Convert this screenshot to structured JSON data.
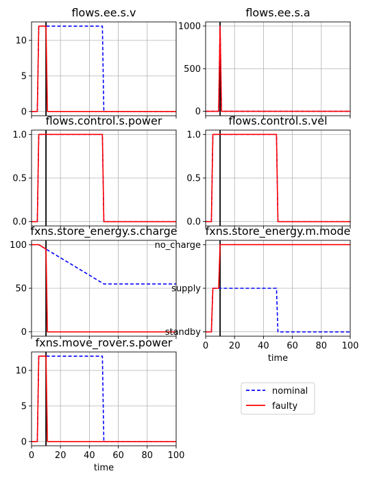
{
  "legend": {
    "entries": [
      {
        "label": "nominal",
        "color": "#0000ff",
        "dash": true
      },
      {
        "label": "faulty",
        "color": "#ff0000",
        "dash": false
      }
    ],
    "placement": "empty bottom-right cell"
  },
  "chart_data": [
    {
      "type": "line",
      "title": "flows.ee.s.v",
      "xlabel": "",
      "ylabel": "",
      "xlim": [
        0,
        100
      ],
      "ylim": [
        -0.6,
        12.6
      ],
      "yticks": [
        0,
        5,
        10
      ],
      "ytick_labels": [
        "0",
        "5",
        "10"
      ],
      "show_xtick_labels": false,
      "grid": true,
      "vline": 10,
      "series": [
        {
          "name": "nominal",
          "x": [
            0,
            4,
            5,
            49,
            50,
            100
          ],
          "y": [
            0,
            0,
            12,
            12,
            0,
            0
          ]
        },
        {
          "name": "faulty",
          "x": [
            0,
            4,
            5,
            10,
            11,
            100
          ],
          "y": [
            0,
            0,
            12,
            12,
            0,
            0
          ]
        }
      ]
    },
    {
      "type": "line",
      "title": "flows.ee.s.a",
      "xlabel": "",
      "ylabel": "",
      "xlim": [
        0,
        100
      ],
      "ylim": [
        -52,
        1048
      ],
      "yticks": [
        0,
        500,
        1000
      ],
      "ytick_labels": [
        "0",
        "500",
        "1000"
      ],
      "show_xtick_labels": false,
      "grid": true,
      "vline": 10,
      "series": [
        {
          "name": "nominal",
          "x": [
            0,
            9,
            10,
            11,
            100
          ],
          "y": [
            0,
            0,
            1000,
            0,
            0
          ]
        },
        {
          "name": "faulty",
          "x": [
            0,
            9,
            10,
            11,
            100
          ],
          "y": [
            0,
            0,
            1000,
            0,
            0
          ]
        }
      ]
    },
    {
      "type": "line",
      "title": "flows.control.s.power",
      "xlabel": "",
      "ylabel": "",
      "xlim": [
        0,
        100
      ],
      "ylim": [
        -0.05,
        1.05
      ],
      "yticks": [
        0,
        0.5,
        1
      ],
      "ytick_labels": [
        "0.0",
        "0.5",
        "1.0"
      ],
      "show_xtick_labels": false,
      "grid": true,
      "vline": 10,
      "series": [
        {
          "name": "nominal",
          "x": [
            0,
            4,
            5,
            49,
            50,
            100
          ],
          "y": [
            0,
            0,
            1,
            1,
            0,
            0
          ]
        },
        {
          "name": "faulty",
          "x": [
            0,
            4,
            5,
            49,
            50,
            100
          ],
          "y": [
            0,
            0,
            1,
            1,
            0,
            0
          ]
        }
      ]
    },
    {
      "type": "line",
      "title": "flows.control.s.vel",
      "xlabel": "",
      "ylabel": "",
      "xlim": [
        0,
        100
      ],
      "ylim": [
        -0.05,
        1.05
      ],
      "yticks": [
        0,
        0.5,
        1
      ],
      "ytick_labels": [
        "0.0",
        "0.5",
        "1.0"
      ],
      "show_xtick_labels": false,
      "grid": true,
      "vline": 10,
      "series": [
        {
          "name": "nominal",
          "x": [
            0,
            4,
            5,
            49,
            50,
            100
          ],
          "y": [
            0,
            0,
            1,
            1,
            0,
            0
          ]
        },
        {
          "name": "faulty",
          "x": [
            0,
            4,
            5,
            49,
            50,
            100
          ],
          "y": [
            0,
            0,
            1,
            1,
            0,
            0
          ]
        }
      ]
    },
    {
      "type": "line",
      "title": "fxns.store_energy.s.charge",
      "xlabel": "",
      "ylabel": "",
      "xlim": [
        0,
        100
      ],
      "ylim": [
        -5,
        105
      ],
      "yticks": [
        0,
        50,
        100
      ],
      "ytick_labels": [
        "0",
        "50",
        "100"
      ],
      "show_xtick_labels": false,
      "grid": true,
      "vline": 10,
      "series": [
        {
          "name": "nominal",
          "x": [
            0,
            5,
            50,
            100
          ],
          "y": [
            100,
            100,
            55,
            55
          ]
        },
        {
          "name": "faulty",
          "x": [
            0,
            5,
            10,
            11,
            100
          ],
          "y": [
            100,
            100,
            95,
            0,
            0
          ]
        }
      ]
    },
    {
      "type": "line",
      "title": "fxns.store_energy.m.mode",
      "xlabel": "time",
      "ylabel": "",
      "xlim": [
        0,
        100
      ],
      "ylim": [
        -0.1,
        2.1
      ],
      "yticks": [
        0,
        1,
        2
      ],
      "ytick_labels": [
        "standby",
        "supply",
        "no_charge"
      ],
      "xticks": [
        0,
        20,
        40,
        60,
        80,
        100
      ],
      "show_xtick_labels": true,
      "grid": true,
      "vline": 10,
      "series": [
        {
          "name": "nominal",
          "x": [
            0,
            4,
            5,
            49,
            50,
            100
          ],
          "y": [
            0,
            0,
            1,
            1,
            0,
            0
          ]
        },
        {
          "name": "faulty",
          "x": [
            0,
            4,
            5,
            9,
            10,
            100
          ],
          "y": [
            0,
            0,
            1,
            1,
            2,
            2
          ]
        }
      ]
    },
    {
      "type": "line",
      "title": "fxns.move_rover.s.power",
      "xlabel": "time",
      "ylabel": "",
      "xlim": [
        0,
        100
      ],
      "ylim": [
        -0.6,
        12.6
      ],
      "yticks": [
        0,
        5,
        10
      ],
      "ytick_labels": [
        "0",
        "5",
        "10"
      ],
      "xticks": [
        0,
        20,
        40,
        60,
        80,
        100
      ],
      "show_xtick_labels": true,
      "grid": true,
      "vline": 10,
      "series": [
        {
          "name": "nominal",
          "x": [
            0,
            4,
            5,
            49,
            50,
            100
          ],
          "y": [
            0,
            0,
            12,
            12,
            0,
            0
          ]
        },
        {
          "name": "faulty",
          "x": [
            0,
            4,
            5,
            10,
            11,
            100
          ],
          "y": [
            0,
            0,
            12,
            12,
            0,
            0
          ]
        }
      ]
    }
  ]
}
